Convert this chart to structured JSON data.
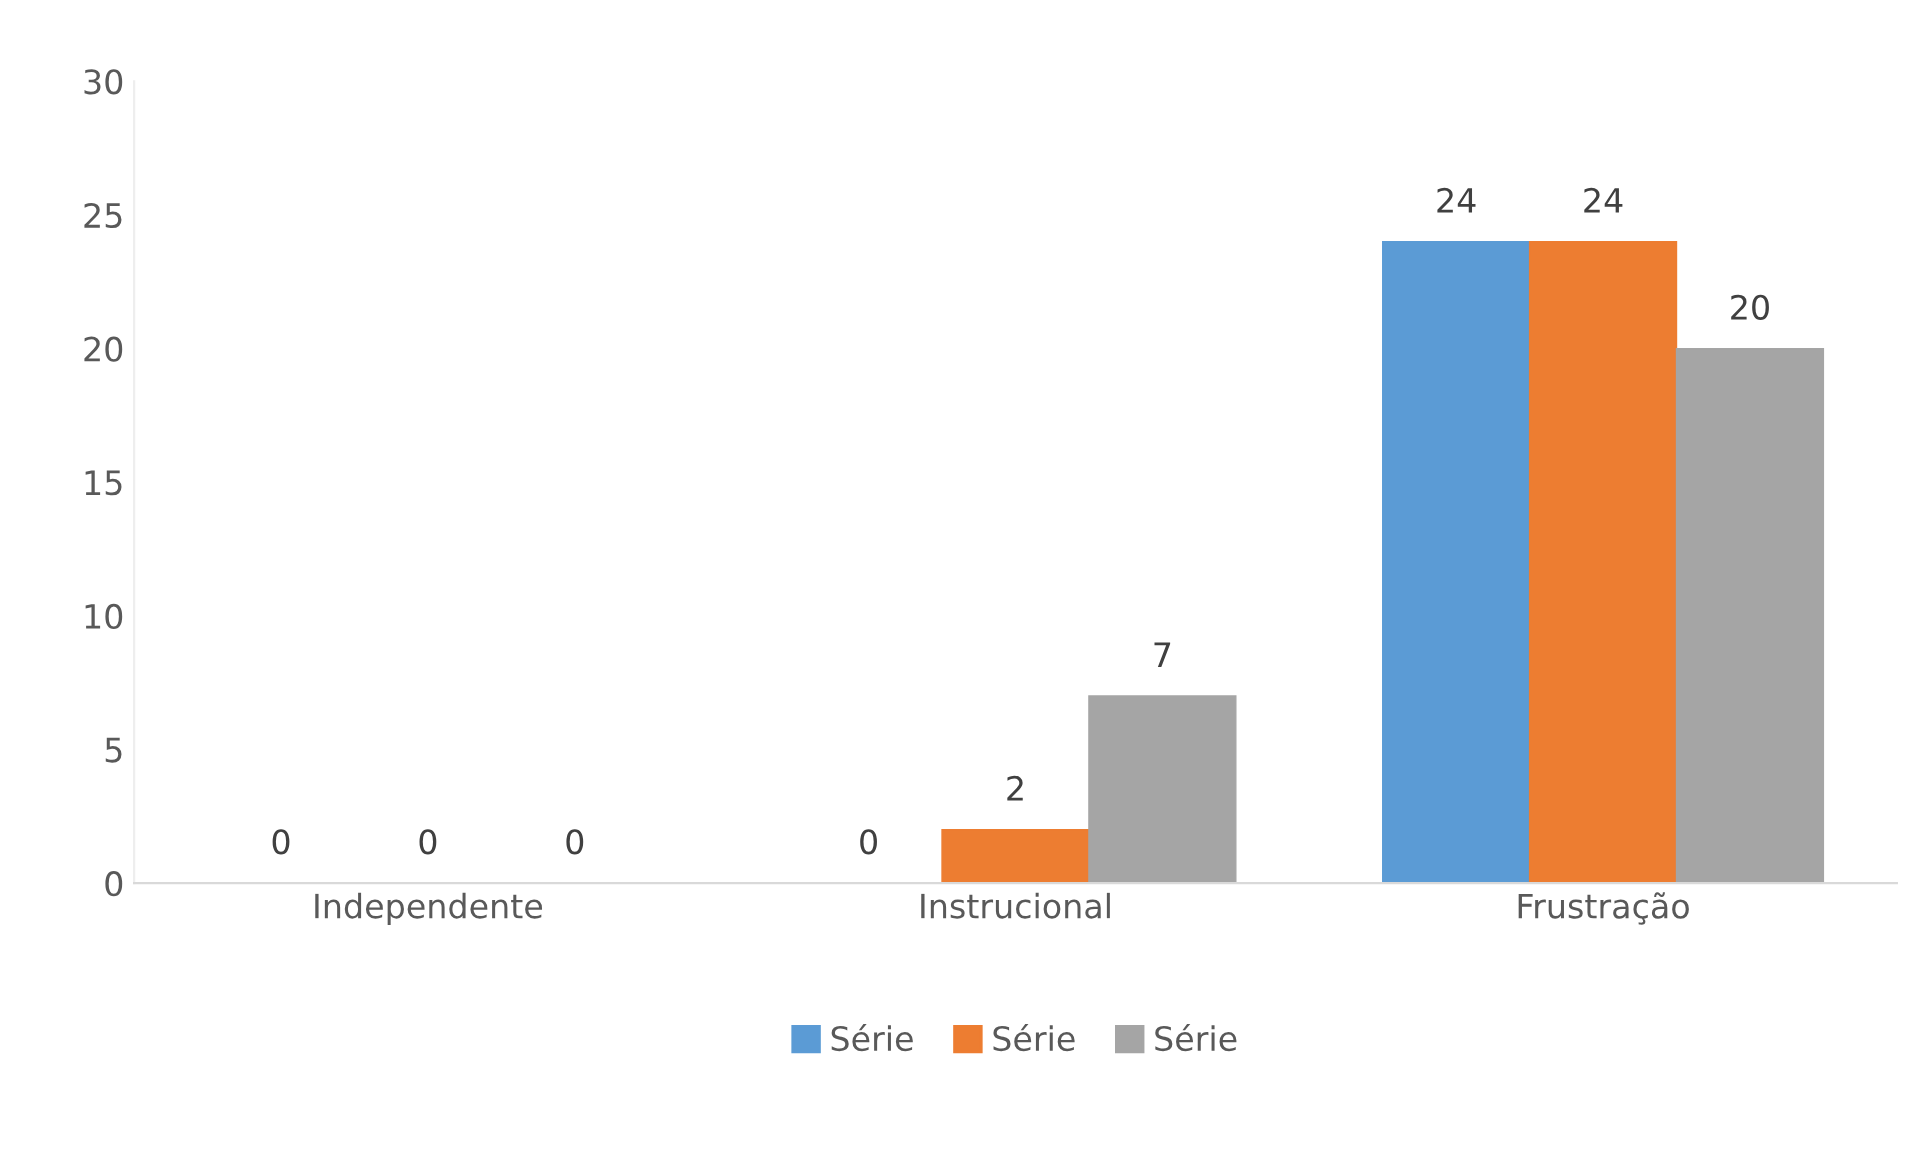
{
  "chart_data": {
    "type": "bar",
    "categories": [
      "Independente",
      "Instrucional",
      "Frustração"
    ],
    "series": [
      {
        "name": "Série",
        "color": "#5b9bd5",
        "values": [
          0,
          0,
          24
        ]
      },
      {
        "name": "Série",
        "color": "#ed7d31",
        "values": [
          0,
          2,
          24
        ]
      },
      {
        "name": "Série",
        "color": "#a5a5a5",
        "values": [
          0,
          7,
          20
        ]
      }
    ],
    "ylim": [
      0,
      30
    ],
    "yticks": [
      0,
      5,
      10,
      15,
      20,
      25,
      30
    ],
    "grid": false,
    "legend": "bottom",
    "data_labels": true
  }
}
